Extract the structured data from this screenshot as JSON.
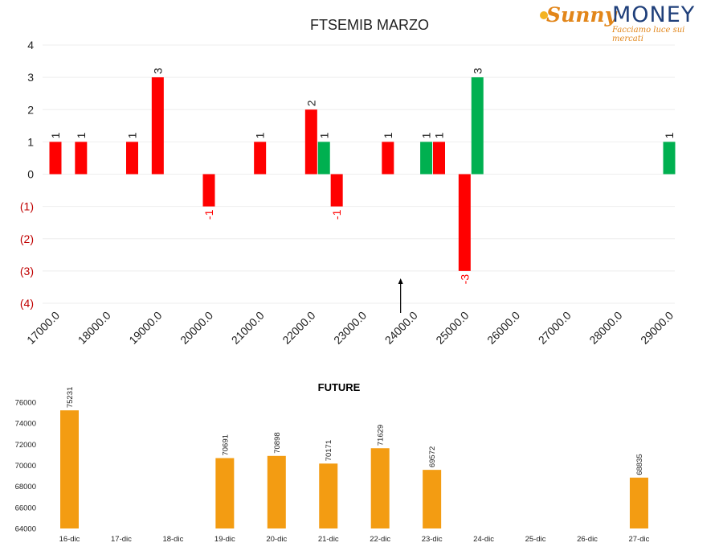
{
  "logo": {
    "brand_a": "Sunny",
    "brand_b": "MONEY",
    "tagline": "Facciamo luce sui mercati"
  },
  "colors": {
    "red": "#ff0000",
    "green": "#00b050",
    "orange": "#f39c12",
    "grid": "#eeeeee",
    "negative_tick": "#c00000"
  },
  "chart_data": [
    {
      "type": "bar",
      "title": "FTSEMIB MARZO",
      "x_ticks": [
        "17000.0",
        "18000.0",
        "19000.0",
        "20000.0",
        "21000.0",
        "22000.0",
        "23000.0",
        "24000.0",
        "25000.0",
        "26000.0",
        "27000.0",
        "28000.0",
        "29000.0"
      ],
      "y_ticks": [
        "4",
        "3",
        "2",
        "1",
        "0",
        "(1)",
        "(2)",
        "(3)",
        "(4)"
      ],
      "ylim": [
        -4,
        4
      ],
      "xlim": [
        17000,
        29000
      ],
      "grid": true,
      "annotation": "arrow at 24000",
      "bars": [
        {
          "strike": 17000,
          "value": 1,
          "series": "red",
          "label": "1"
        },
        {
          "strike": 17500,
          "value": 1,
          "series": "red",
          "label": "1"
        },
        {
          "strike": 18500,
          "value": 1,
          "series": "red",
          "label": "1"
        },
        {
          "strike": 19000,
          "value": 3,
          "series": "red",
          "label": "3"
        },
        {
          "strike": 20000,
          "value": -1,
          "series": "red",
          "label": "-1"
        },
        {
          "strike": 21000,
          "value": 1,
          "series": "red",
          "label": "1"
        },
        {
          "strike": 22000,
          "value": 2,
          "series": "red",
          "label": "2"
        },
        {
          "strike": 22250,
          "value": 1,
          "series": "green",
          "label": "1"
        },
        {
          "strike": 22500,
          "value": -1,
          "series": "red",
          "label": "-1"
        },
        {
          "strike": 23500,
          "value": 1,
          "series": "red",
          "label": "1"
        },
        {
          "strike": 24250,
          "value": 1,
          "series": "green",
          "label": "1"
        },
        {
          "strike": 24500,
          "value": 1,
          "series": "red",
          "label": "1"
        },
        {
          "strike": 25000,
          "value": -3,
          "series": "red",
          "label": "-3"
        },
        {
          "strike": 25250,
          "value": 3,
          "series": "green",
          "label": "3"
        },
        {
          "strike": 29000,
          "value": 1,
          "series": "green",
          "label": "1"
        }
      ]
    },
    {
      "type": "bar",
      "title": "FUTURE",
      "categories": [
        "16-dic",
        "17-dic",
        "18-dic",
        "19-dic",
        "20-dic",
        "21-dic",
        "22-dic",
        "23-dic",
        "24-dic",
        "25-dic",
        "26-dic",
        "27-dic"
      ],
      "values": [
        75231,
        null,
        null,
        70691,
        70898,
        70171,
        71629,
        69572,
        null,
        null,
        null,
        68835
      ],
      "y_ticks": [
        "76000",
        "74000",
        "72000",
        "70000",
        "68000",
        "66000",
        "64000"
      ],
      "ylim": [
        64000,
        77000
      ],
      "grid": false
    }
  ]
}
